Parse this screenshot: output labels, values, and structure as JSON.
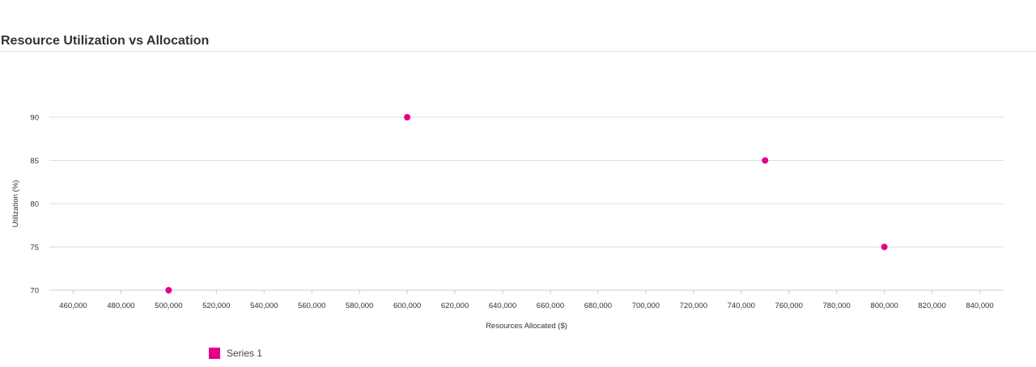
{
  "chart_data": {
    "type": "scatter",
    "title": "Resource Utilization vs Allocation",
    "xlabel": "Resources Allocated ($)",
    "ylabel": "Utilization (%)",
    "xlim": [
      450000,
      850000
    ],
    "ylim": [
      70,
      90
    ],
    "x_ticks": [
      "460,000",
      "480,000",
      "500,000",
      "520,000",
      "540,000",
      "560,000",
      "580,000",
      "600,000",
      "620,000",
      "640,000",
      "660,000",
      "680,000",
      "700,000",
      "720,000",
      "740,000",
      "760,000",
      "780,000",
      "800,000",
      "820,000",
      "840,000"
    ],
    "x_tick_values": [
      460000,
      480000,
      500000,
      520000,
      540000,
      560000,
      580000,
      600000,
      620000,
      640000,
      660000,
      680000,
      700000,
      720000,
      740000,
      760000,
      780000,
      800000,
      820000,
      840000
    ],
    "y_ticks": [
      "70",
      "75",
      "80",
      "85",
      "90"
    ],
    "y_tick_values": [
      70,
      75,
      80,
      85,
      90
    ],
    "grid": "horizontal",
    "legend_position": "bottom-left",
    "series": [
      {
        "name": "Series 1",
        "color": "#e5008a",
        "points": [
          {
            "x": 500000,
            "y": 70
          },
          {
            "x": 600000,
            "y": 90
          },
          {
            "x": 750000,
            "y": 85
          },
          {
            "x": 800000,
            "y": 75
          }
        ]
      }
    ]
  }
}
